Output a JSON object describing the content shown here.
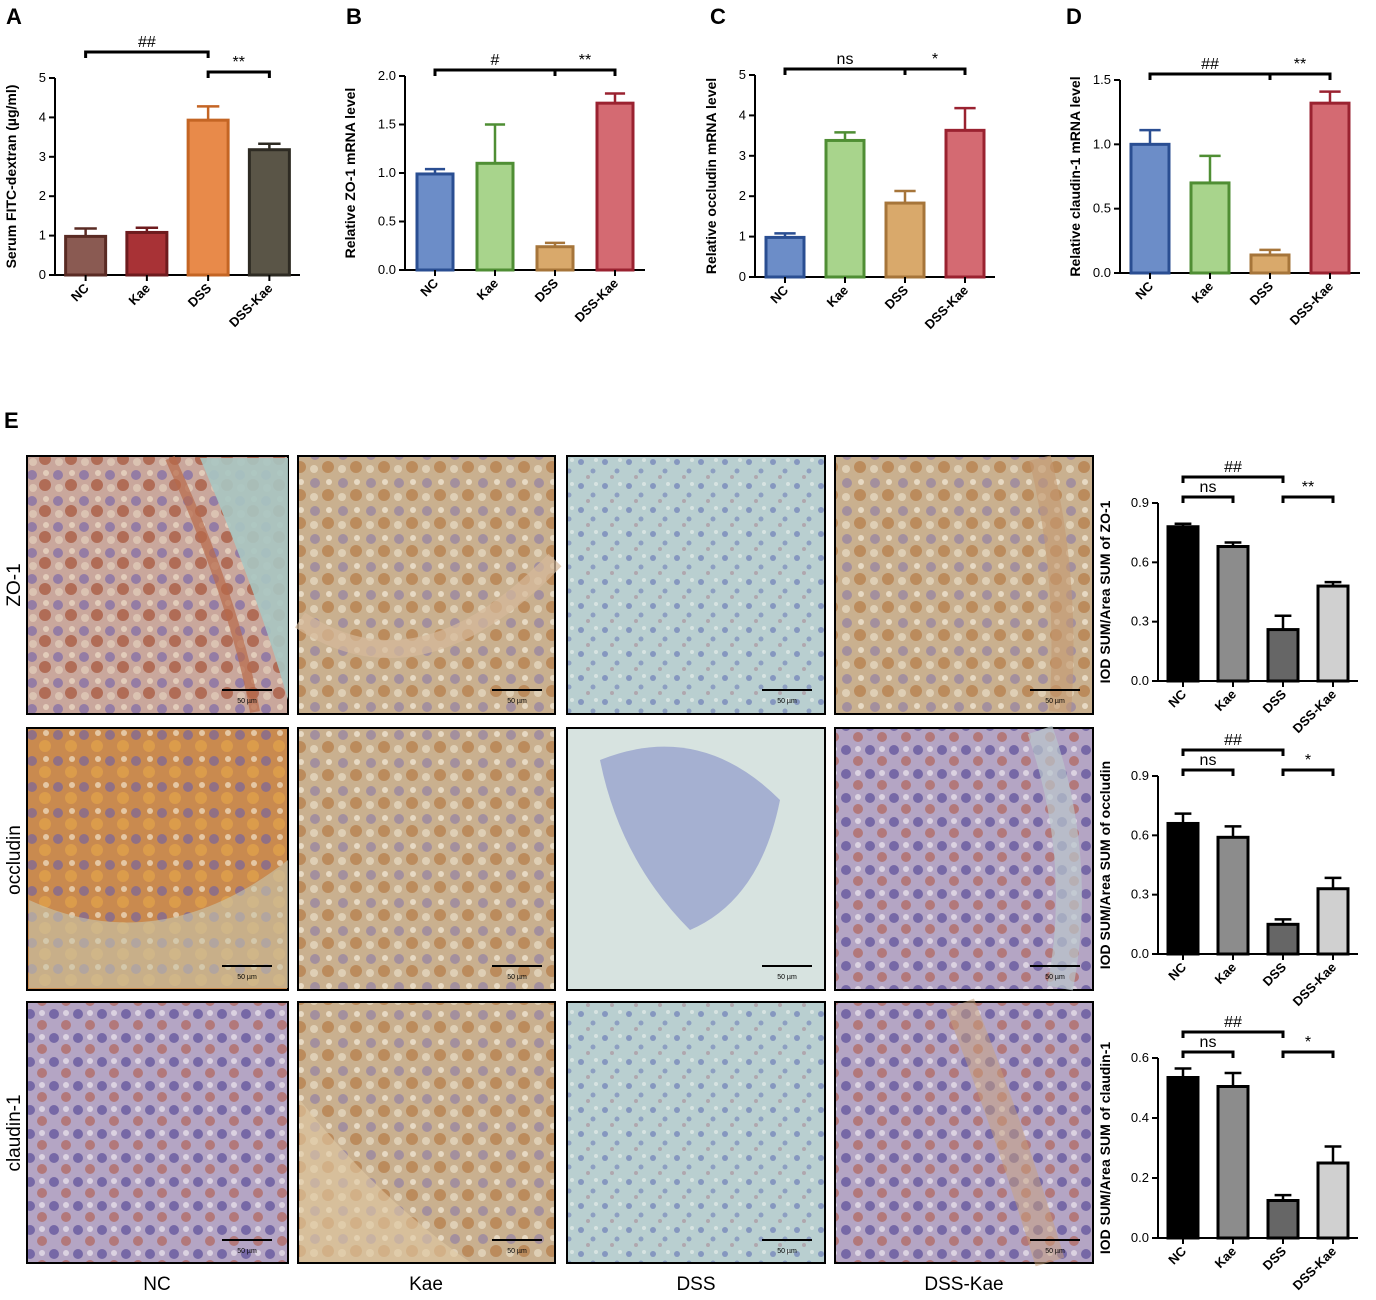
{
  "chart_data": [
    {
      "panel": "A",
      "type": "bar",
      "categories": [
        "NC",
        "Kae",
        "DSS",
        "DSS-Kae"
      ],
      "values": [
        0.98,
        1.08,
        3.93,
        3.18
      ],
      "errors": [
        0.2,
        0.12,
        0.35,
        0.15
      ],
      "colors": [
        "#8a5a52",
        "#a83236",
        "#e88a4a",
        "#5a5547"
      ],
      "edge": [
        "#5a2b24",
        "#6e1b1e",
        "#c46524",
        "#2e2b23"
      ],
      "ylabel": "Serum FITC-dextran (µg/ml)",
      "ylim": [
        0,
        5
      ],
      "yticks": [
        "0",
        "1",
        "2",
        "3",
        "4",
        "5"
      ],
      "brackets": [
        {
          "from": 0,
          "to": 2,
          "label": "##",
          "level": 2
        },
        {
          "from": 2,
          "to": 3,
          "label": "**",
          "level": 1
        }
      ]
    },
    {
      "panel": "B",
      "type": "bar",
      "categories": [
        "NC",
        "Kae",
        "DSS",
        "DSS-Kae"
      ],
      "values": [
        0.99,
        1.1,
        0.24,
        1.72
      ],
      "errors": [
        0.05,
        0.4,
        0.04,
        0.1
      ],
      "colors": [
        "#6c8dc8",
        "#a8d48c",
        "#d9a96b",
        "#d46a72"
      ],
      "edge": [
        "#2a4e92",
        "#4f8e34",
        "#a6753a",
        "#9a2230"
      ],
      "ylabel": "Relative ZO-1 mRNA level",
      "ylim": [
        0,
        2.0
      ],
      "yticks": [
        "0.0",
        "0.5",
        "1.0",
        "1.5",
        "2.0"
      ],
      "brackets": [
        {
          "from": 0,
          "to": 2,
          "label": "#",
          "level": 1
        },
        {
          "from": 2,
          "to": 3,
          "label": "**",
          "level": 1
        }
      ]
    },
    {
      "panel": "C",
      "type": "bar",
      "categories": [
        "NC",
        "Kae",
        "DSS",
        "DSS-Kae"
      ],
      "values": [
        0.98,
        3.38,
        1.83,
        3.63
      ],
      "errors": [
        0.1,
        0.2,
        0.3,
        0.55
      ],
      "colors": [
        "#6c8dc8",
        "#a8d48c",
        "#d9a96b",
        "#d46a72"
      ],
      "edge": [
        "#2a4e92",
        "#4f8e34",
        "#a6753a",
        "#9a2230"
      ],
      "ylabel": "Relative occludin mRNA level",
      "ylim": [
        0,
        5
      ],
      "yticks": [
        "0",
        "1",
        "2",
        "3",
        "4",
        "5"
      ],
      "brackets": [
        {
          "from": 0,
          "to": 2,
          "label": "ns",
          "level": 1
        },
        {
          "from": 2,
          "to": 3,
          "label": "*",
          "level": 1
        }
      ]
    },
    {
      "panel": "D",
      "type": "bar",
      "categories": [
        "NC",
        "Kae",
        "DSS",
        "DSS-Kae"
      ],
      "values": [
        1.0,
        0.7,
        0.14,
        1.32
      ],
      "errors": [
        0.11,
        0.21,
        0.04,
        0.09
      ],
      "colors": [
        "#6c8dc8",
        "#a8d48c",
        "#d9a96b",
        "#d46a72"
      ],
      "edge": [
        "#2a4e92",
        "#4f8e34",
        "#a6753a",
        "#9a2230"
      ],
      "ylabel": "Relative claudin-1 mRNA level",
      "ylim": [
        0,
        1.5
      ],
      "yticks": [
        "0.0",
        "0.5",
        "1.0",
        "1.5"
      ],
      "brackets": [
        {
          "from": 0,
          "to": 2,
          "label": "##",
          "level": 1
        },
        {
          "from": 2,
          "to": 3,
          "label": "**",
          "level": 1
        }
      ]
    },
    {
      "panel": "E-ZO-1",
      "type": "bar",
      "categories": [
        "NC",
        "Kae",
        "DSS",
        "DSS-Kae"
      ],
      "values": [
        0.78,
        0.68,
        0.26,
        0.48
      ],
      "errors": [
        0.015,
        0.02,
        0.07,
        0.02
      ],
      "colors": [
        "#000000",
        "#8c8c8c",
        "#666666",
        "#d0d0d0"
      ],
      "edge": [
        "#000000",
        "#000000",
        "#000000",
        "#000000"
      ],
      "ylabel": "IOD SUM/Area SUM of ZO-1",
      "ylim": [
        0,
        0.9
      ],
      "yticks": [
        "0.0",
        "0.3",
        "0.6",
        "0.9"
      ],
      "brackets": [
        {
          "from": 0,
          "to": 2,
          "label": "##",
          "level": 2
        },
        {
          "from": 0,
          "to": 1,
          "label": "ns",
          "level": 1
        },
        {
          "from": 2,
          "to": 3,
          "label": "**",
          "level": 1
        }
      ]
    },
    {
      "panel": "E-occludin",
      "type": "bar",
      "categories": [
        "NC",
        "Kae",
        "DSS",
        "DSS-Kae"
      ],
      "values": [
        0.66,
        0.59,
        0.15,
        0.33
      ],
      "errors": [
        0.05,
        0.055,
        0.025,
        0.055
      ],
      "colors": [
        "#000000",
        "#8c8c8c",
        "#666666",
        "#d0d0d0"
      ],
      "edge": [
        "#000000",
        "#000000",
        "#000000",
        "#000000"
      ],
      "ylabel": "IOD SUM/Area SUM of occludin",
      "ylim": [
        0,
        0.9
      ],
      "yticks": [
        "0.0",
        "0.3",
        "0.6",
        "0.9"
      ],
      "brackets": [
        {
          "from": 0,
          "to": 2,
          "label": "##",
          "level": 2
        },
        {
          "from": 0,
          "to": 1,
          "label": "ns",
          "level": 1
        },
        {
          "from": 2,
          "to": 3,
          "label": "*",
          "level": 1
        }
      ]
    },
    {
      "panel": "E-claudin-1",
      "type": "bar",
      "categories": [
        "NC",
        "Kae",
        "DSS",
        "DSS-Kae"
      ],
      "values": [
        0.535,
        0.505,
        0.125,
        0.25
      ],
      "errors": [
        0.03,
        0.045,
        0.018,
        0.055
      ],
      "colors": [
        "#000000",
        "#8c8c8c",
        "#666666",
        "#d0d0d0"
      ],
      "edge": [
        "#000000",
        "#000000",
        "#000000",
        "#000000"
      ],
      "ylabel": "IOD SUM/Area SUM of claudin-1",
      "ylim": [
        0,
        0.6
      ],
      "yticks": [
        "0.0",
        "0.2",
        "0.4",
        "0.6"
      ],
      "brackets": [
        {
          "from": 0,
          "to": 2,
          "label": "##",
          "level": 2
        },
        {
          "from": 0,
          "to": 1,
          "label": "ns",
          "level": 1
        },
        {
          "from": 2,
          "to": 3,
          "label": "*",
          "level": 1
        }
      ]
    }
  ],
  "panel_labels": {
    "A": "A",
    "B": "B",
    "C": "C",
    "D": "D",
    "E": "E"
  },
  "micrographs": {
    "rows": [
      "ZO-1",
      "occludin",
      "claudin-1"
    ],
    "columns": [
      "NC",
      "Kae",
      "DSS",
      "DSS-Kae"
    ],
    "scale_bar": "50 µm"
  }
}
